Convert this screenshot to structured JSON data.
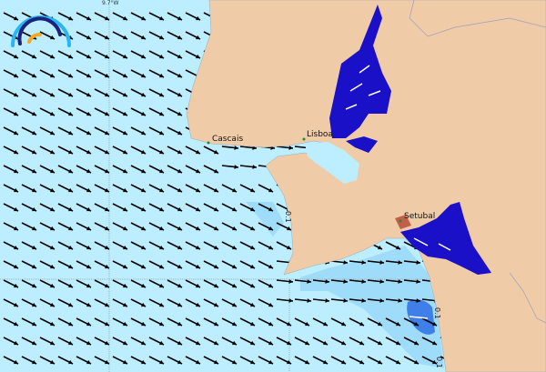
{
  "map": {
    "graticule_label": "9.7°W",
    "places": [
      {
        "name": "Cascais"
      },
      {
        "name": "Lisboa"
      },
      {
        "name": "Setubal"
      }
    ],
    "contour_labels": [
      "0.1",
      "0.1",
      "0.1"
    ],
    "colors": {
      "ocean": "#bdeeff",
      "ocean_mid": "#9fdcfa",
      "ocean_strong": "#3f7fe8",
      "land": "#efcba8",
      "river": "#1a10c8",
      "arrows": "#000000",
      "logo_outer": "#29b6f6",
      "logo_inner": "#1a237e",
      "logo_accent": "#f9a825"
    },
    "icons": [
      "app-logo-icon",
      "current-vector-arrows"
    ]
  }
}
